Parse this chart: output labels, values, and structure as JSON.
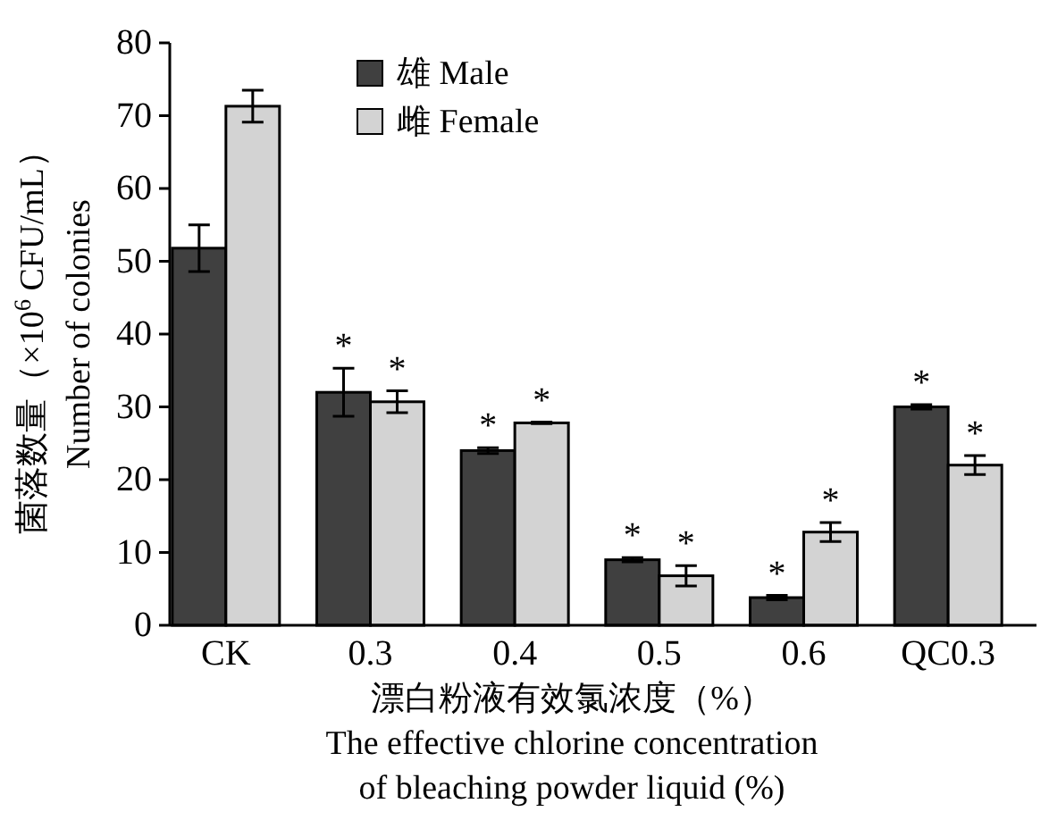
{
  "chart_data": {
    "type": "bar",
    "categories": [
      "CK",
      "0.3",
      "0.4",
      "0.5",
      "0.6",
      "QC0.3"
    ],
    "series": [
      {
        "name": "雄 Male",
        "color": "#404040",
        "values": [
          51.8,
          32,
          24,
          9,
          3.8,
          30
        ],
        "errors": [
          3.2,
          3.3,
          0.4,
          0.3,
          0.3,
          0.3
        ],
        "value_labels": [
          null,
          "*",
          "*",
          "*",
          "*",
          "*"
        ]
      },
      {
        "name": "雌 Female",
        "color": "#d3d3d3",
        "values": [
          71.3,
          30.7,
          27.8,
          6.8,
          12.8,
          22
        ],
        "errors": [
          2.2,
          1.5,
          0.1,
          1.4,
          1.3,
          1.3
        ],
        "value_labels": [
          null,
          "*",
          "*",
          "*",
          "*",
          "*"
        ]
      }
    ],
    "ylabel": "菌落数量（×10$^{6}$ CFU/mL）\nNumber of colonies",
    "xlabel": "漂白粉液有效氯浓度（%）\nThe effective chlorine concentration\nof bleaching powder liquid (%)",
    "ylim": [
      0,
      80
    ],
    "yticks": [
      0,
      10,
      20,
      30,
      40,
      50,
      60,
      70,
      80
    ],
    "legend": "top left",
    "grid": false
  }
}
